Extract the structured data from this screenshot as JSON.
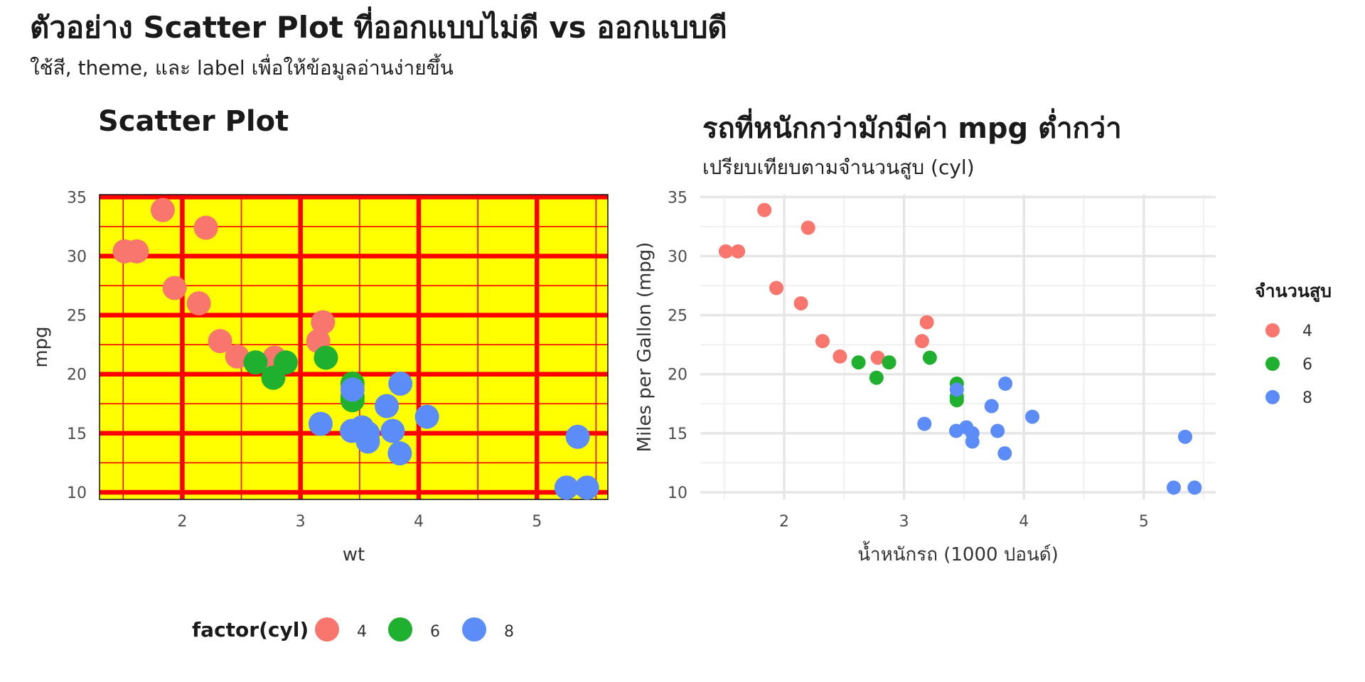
{
  "title": "ตัวอย่าง Scatter Plot ที่ออกแบบไม่ดี vs ออกแบบดี",
  "subtitle": "ใช้สี, theme, และ label เพื่อให้ข้อมูลอ่านง่ายขึ้น",
  "colors": {
    "cyl_4": "#F8766D",
    "cyl_6": "#1FB030",
    "cyl_8": "#5B8CF8",
    "bad_bg": "#FFFF00",
    "bad_grid": "#FF0000"
  },
  "chart_data": [
    {
      "type": "scatter",
      "title": "Scatter Plot",
      "xlabel": "wt",
      "ylabel": "mpg",
      "xlim": [
        1.3,
        5.6
      ],
      "ylim": [
        9.4,
        35.2
      ],
      "xticks": [
        "2",
        "3",
        "4",
        "5"
      ],
      "yticks": [
        "10",
        "15",
        "20",
        "25",
        "30",
        "35"
      ],
      "grid": true,
      "legend": {
        "title": "factor(cyl)",
        "position": "bottom",
        "entries": [
          "4",
          "6",
          "8"
        ]
      },
      "series": [
        {
          "name": "4",
          "x": [
            2.32,
            3.19,
            3.15,
            2.2,
            1.615,
            1.835,
            2.465,
            1.935,
            2.14,
            1.513,
            2.78
          ],
          "y": [
            22.8,
            24.4,
            22.8,
            32.4,
            30.4,
            33.9,
            21.5,
            27.3,
            26.0,
            30.4,
            21.4
          ]
        },
        {
          "name": "6",
          "x": [
            2.62,
            2.875,
            3.215,
            3.44,
            3.44,
            3.44,
            2.77
          ],
          "y": [
            21.0,
            21.0,
            21.4,
            18.1,
            19.2,
            17.8,
            19.7
          ]
        },
        {
          "name": "8",
          "x": [
            3.44,
            3.57,
            4.07,
            3.73,
            3.78,
            5.25,
            5.424,
            5.345,
            3.52,
            3.435,
            3.84,
            3.845,
            3.17,
            3.57
          ],
          "y": [
            18.7,
            14.3,
            16.4,
            17.3,
            15.2,
            10.4,
            10.4,
            14.7,
            15.5,
            15.2,
            13.3,
            19.2,
            15.8,
            15.0
          ]
        }
      ]
    },
    {
      "type": "scatter",
      "title": "รถที่หนักกว่ามักมีค่า mpg ต่ำกว่า",
      "subtitle": "เปรียบเทียบตามจำนวนสูบ (cyl)",
      "xlabel": "น้ำหนักรถ (1000 ปอนด์)",
      "ylabel": "Miles per Gallon (mpg)",
      "xlim": [
        1.3,
        5.6
      ],
      "ylim": [
        9.4,
        35.2
      ],
      "xticks": [
        "2",
        "3",
        "4",
        "5"
      ],
      "yticks": [
        "10",
        "15",
        "20",
        "25",
        "30",
        "35"
      ],
      "grid": true,
      "legend": {
        "title": "จำนวนสูบ",
        "position": "right",
        "entries": [
          "4",
          "6",
          "8"
        ]
      },
      "series": [
        {
          "name": "4",
          "x": [
            2.32,
            3.19,
            3.15,
            2.2,
            1.615,
            1.835,
            2.465,
            1.935,
            2.14,
            1.513,
            2.78
          ],
          "y": [
            22.8,
            24.4,
            22.8,
            32.4,
            30.4,
            33.9,
            21.5,
            27.3,
            26.0,
            30.4,
            21.4
          ]
        },
        {
          "name": "6",
          "x": [
            2.62,
            2.875,
            3.215,
            3.44,
            3.44,
            3.44,
            2.77
          ],
          "y": [
            21.0,
            21.0,
            21.4,
            18.1,
            19.2,
            17.8,
            19.7
          ]
        },
        {
          "name": "8",
          "x": [
            3.44,
            3.57,
            4.07,
            3.73,
            3.78,
            5.25,
            5.424,
            5.345,
            3.52,
            3.435,
            3.84,
            3.845,
            3.17,
            3.57
          ],
          "y": [
            18.7,
            14.3,
            16.4,
            17.3,
            15.2,
            10.4,
            10.4,
            14.7,
            15.5,
            15.2,
            13.3,
            19.2,
            15.8,
            15.0
          ]
        }
      ]
    }
  ]
}
